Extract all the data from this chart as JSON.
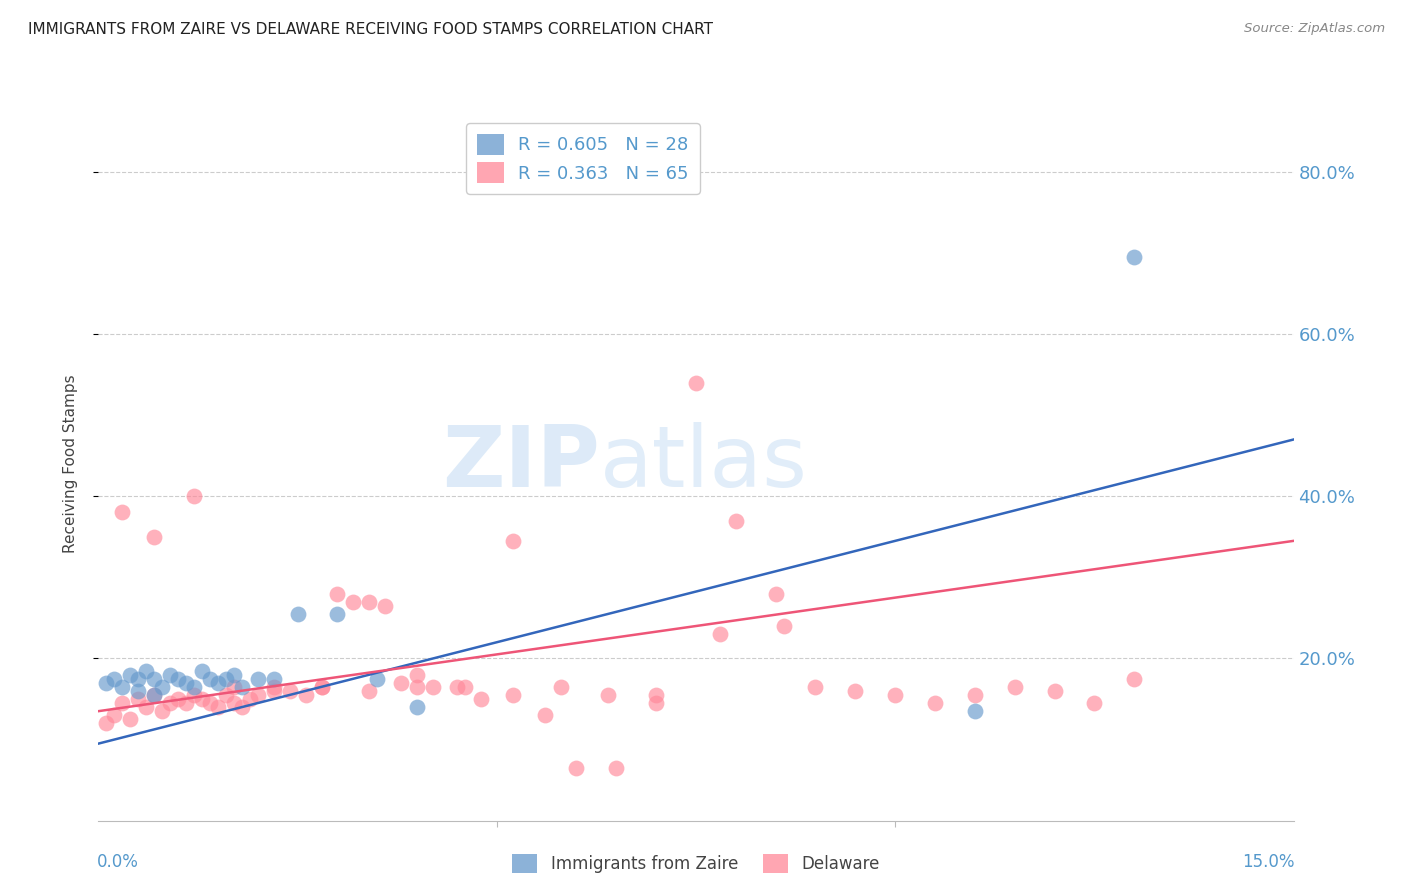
{
  "title": "IMMIGRANTS FROM ZAIRE VS DELAWARE RECEIVING FOOD STAMPS CORRELATION CHART",
  "source": "Source: ZipAtlas.com",
  "ylabel": "Receiving Food Stamps",
  "ytick_labels": [
    "80.0%",
    "60.0%",
    "40.0%",
    "20.0%"
  ],
  "ytick_values": [
    0.8,
    0.6,
    0.4,
    0.2
  ],
  "xlim": [
    0.0,
    0.15
  ],
  "ylim": [
    0.0,
    0.88
  ],
  "legend_blue_r": "R = 0.605",
  "legend_blue_n": "N = 28",
  "legend_pink_r": "R = 0.363",
  "legend_pink_n": "N = 65",
  "blue_color": "#6699CC",
  "pink_color": "#FF8899",
  "blue_line_color": "#3366BB",
  "pink_line_color": "#EE5577",
  "title_color": "#222222",
  "axis_label_color": "#444444",
  "tick_color": "#5599CC",
  "grid_color": "#CCCCCC",
  "watermark_color": "#AACCEE",
  "blue_scatter_x": [
    0.001,
    0.002,
    0.003,
    0.004,
    0.005,
    0.005,
    0.006,
    0.007,
    0.007,
    0.008,
    0.009,
    0.01,
    0.011,
    0.012,
    0.013,
    0.014,
    0.015,
    0.016,
    0.017,
    0.018,
    0.02,
    0.022,
    0.025,
    0.03,
    0.035,
    0.04,
    0.11,
    0.13
  ],
  "blue_scatter_y": [
    0.17,
    0.175,
    0.165,
    0.18,
    0.175,
    0.16,
    0.185,
    0.155,
    0.175,
    0.165,
    0.18,
    0.175,
    0.17,
    0.165,
    0.185,
    0.175,
    0.17,
    0.175,
    0.18,
    0.165,
    0.175,
    0.175,
    0.255,
    0.255,
    0.175,
    0.14,
    0.135,
    0.695
  ],
  "pink_scatter_x": [
    0.001,
    0.002,
    0.003,
    0.004,
    0.005,
    0.006,
    0.007,
    0.008,
    0.009,
    0.01,
    0.011,
    0.012,
    0.013,
    0.014,
    0.015,
    0.016,
    0.017,
    0.018,
    0.019,
    0.02,
    0.022,
    0.024,
    0.026,
    0.028,
    0.03,
    0.032,
    0.034,
    0.036,
    0.038,
    0.04,
    0.042,
    0.045,
    0.048,
    0.052,
    0.056,
    0.06,
    0.065,
    0.07,
    0.075,
    0.08,
    0.085,
    0.09,
    0.095,
    0.1,
    0.105,
    0.11,
    0.115,
    0.12,
    0.125,
    0.13,
    0.003,
    0.007,
    0.012,
    0.017,
    0.022,
    0.028,
    0.034,
    0.04,
    0.046,
    0.052,
    0.058,
    0.064,
    0.07,
    0.078,
    0.086
  ],
  "pink_scatter_y": [
    0.12,
    0.13,
    0.145,
    0.125,
    0.15,
    0.14,
    0.155,
    0.135,
    0.145,
    0.15,
    0.145,
    0.155,
    0.15,
    0.145,
    0.14,
    0.155,
    0.145,
    0.14,
    0.15,
    0.155,
    0.165,
    0.16,
    0.155,
    0.165,
    0.28,
    0.27,
    0.27,
    0.265,
    0.17,
    0.18,
    0.165,
    0.165,
    0.15,
    0.155,
    0.13,
    0.065,
    0.065,
    0.145,
    0.54,
    0.37,
    0.28,
    0.165,
    0.16,
    0.155,
    0.145,
    0.155,
    0.165,
    0.16,
    0.145,
    0.175,
    0.38,
    0.35,
    0.4,
    0.165,
    0.16,
    0.165,
    0.16,
    0.165,
    0.165,
    0.345,
    0.165,
    0.155,
    0.155,
    0.23,
    0.24
  ],
  "blue_line_x": [
    0.0,
    0.15
  ],
  "blue_line_y": [
    0.095,
    0.47
  ],
  "pink_line_x": [
    0.0,
    0.15
  ],
  "pink_line_y": [
    0.135,
    0.345
  ]
}
